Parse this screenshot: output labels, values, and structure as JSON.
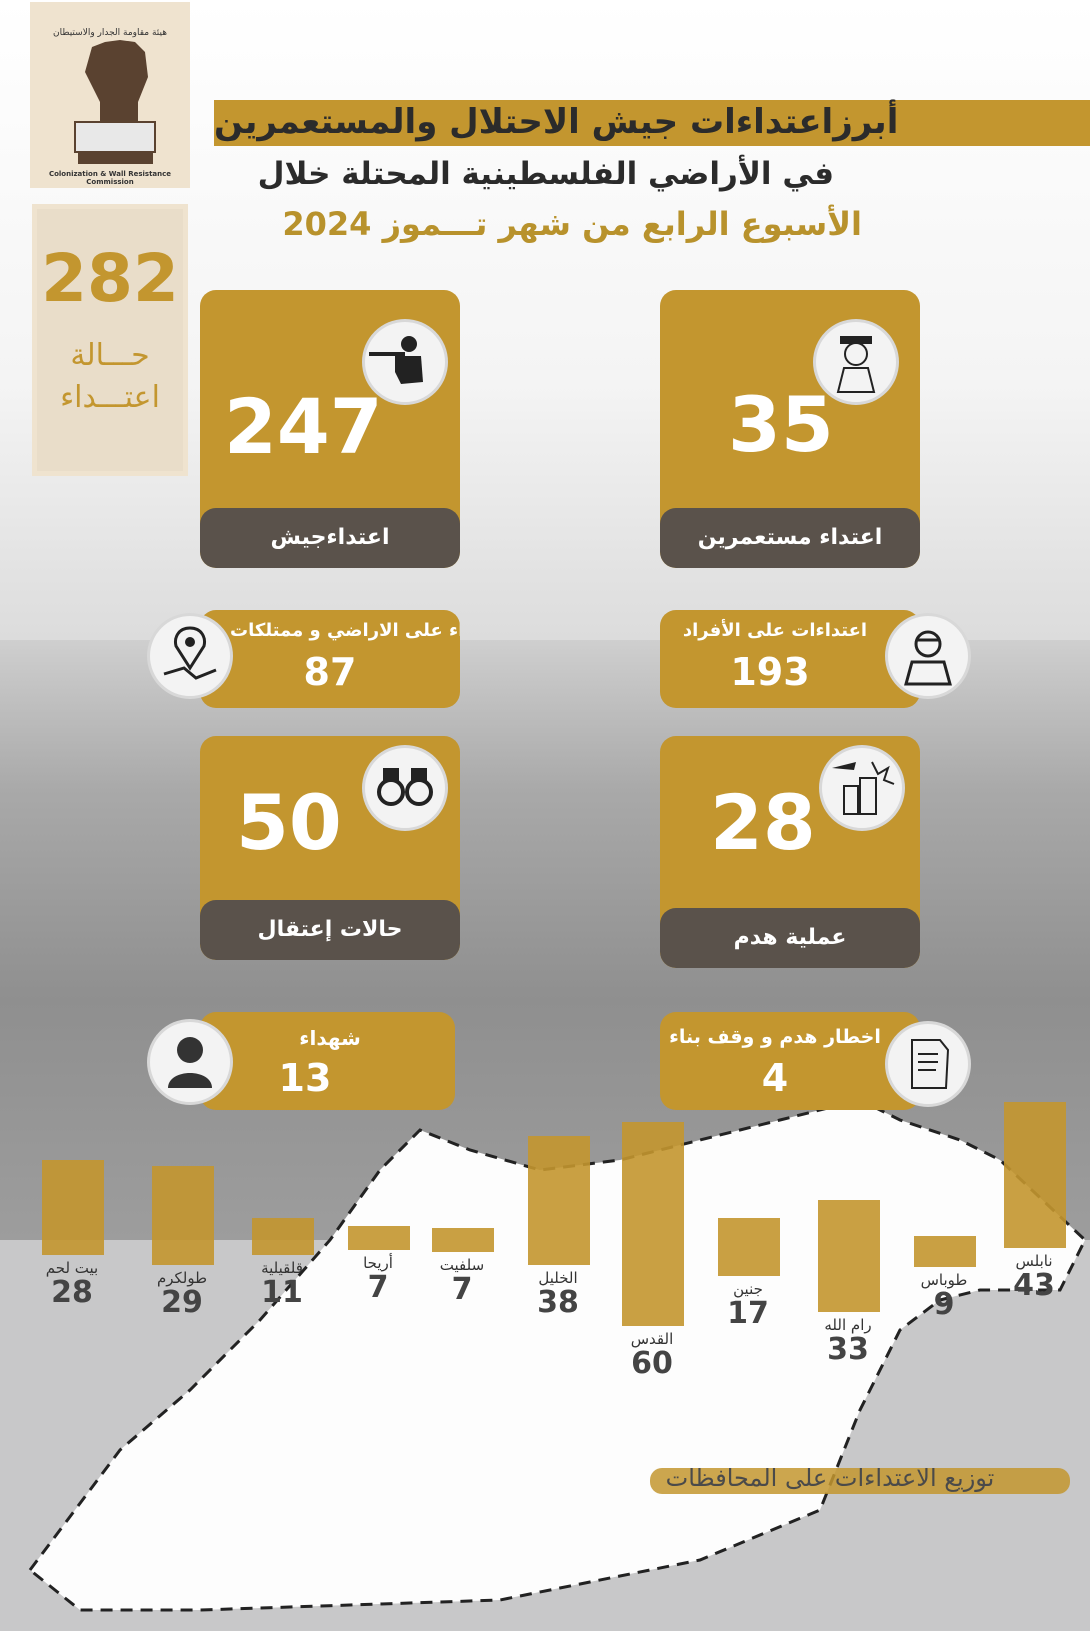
{
  "header": {
    "line1": "أبرزاعتداءات جيش الاحتلال والمستعمرين",
    "line2": "في الأراضي الفلسطينية المحتلة خلال",
    "line3": "الأسبوع الرابع من شهر تـــموز  2024"
  },
  "logo": {
    "text": "Colonization & Wall Resistance Commission",
    "arabic": "هيئة مقاومة الجدار والاستيطان"
  },
  "total": {
    "value": "282",
    "label1": "حـــالة",
    "label2": "اعتـــداء"
  },
  "cards": {
    "army": {
      "value": "247",
      "label": "اعتداءجيش",
      "icon": "soldier-icon"
    },
    "settlers": {
      "value": "35",
      "label": "اعتداء مستعمرين",
      "icon": "settler-icon"
    },
    "land": {
      "value": "87",
      "label": "اعتداء على الاراضي و ممتلكات",
      "icon": "map-pin-icon"
    },
    "individuals": {
      "value": "193",
      "label": "اعتداءات على الأفراد",
      "icon": "injured-person-icon"
    },
    "arrests": {
      "value": "50",
      "label": "حالات إعتقال",
      "icon": "handcuffs-icon"
    },
    "demolition": {
      "value": "28",
      "label": "عملية هدم",
      "icon": "demolition-icon"
    },
    "martyrs": {
      "value": "13",
      "label": "شهداء",
      "icon": "person-icon"
    },
    "notices": {
      "value": "4",
      "label": "اخطار  هدم و وقف بناء",
      "icon": "document-icon"
    }
  },
  "chart_data": {
    "type": "bar",
    "title": "توزيع الاعتداءات على المحافظات",
    "categories": [
      "بيت لحم",
      "طولكرم",
      "قلقيلية",
      "أريحا",
      "سلفيت",
      "الخليل",
      "القدس",
      "جنين",
      "رام الله",
      "طوباس",
      "نابلس"
    ],
    "values": [
      28,
      29,
      11,
      7,
      7,
      38,
      60,
      17,
      33,
      9,
      43
    ],
    "colors": {
      "bar": "#c3962f"
    }
  }
}
